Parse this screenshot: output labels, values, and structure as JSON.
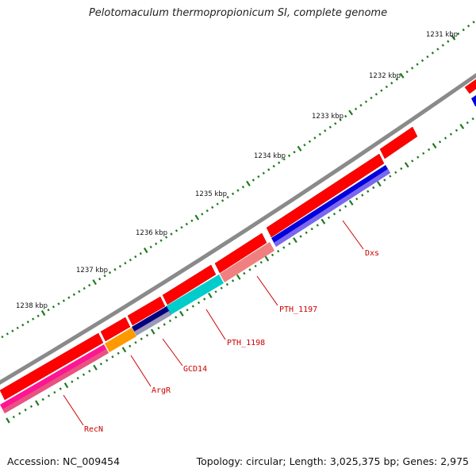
{
  "title": "Pelotomaculum thermopropionicum SI, complete genome",
  "footer": {
    "accession": "Accession: NC_009454",
    "summary": "Topology: circular; Length: 3,025,375 bp; Genes: 2,975"
  },
  "scale_labels": [
    "1231 kbp",
    "1232 kbp",
    "1233 kbp",
    "1234 kbp",
    "1235 kbp",
    "1236 kbp",
    "1237 kbp",
    "1238 kbp"
  ],
  "gene_labels": [
    "Dxs",
    "PTH_1197",
    "PTH_1198",
    "GCD14",
    "ArgR",
    "RecN"
  ],
  "colors": {
    "backbone": "#8a8a8a",
    "forward_gene": "#ff0000",
    "tick": "#1f7a1f",
    "label": "#cc0000",
    "dxs": "#0000dd",
    "pth_1197": "#f08080",
    "pth_1198": "#00cccc",
    "gcd14": "#000080",
    "argr": "#ff9900",
    "recn": "#ff1493"
  }
}
